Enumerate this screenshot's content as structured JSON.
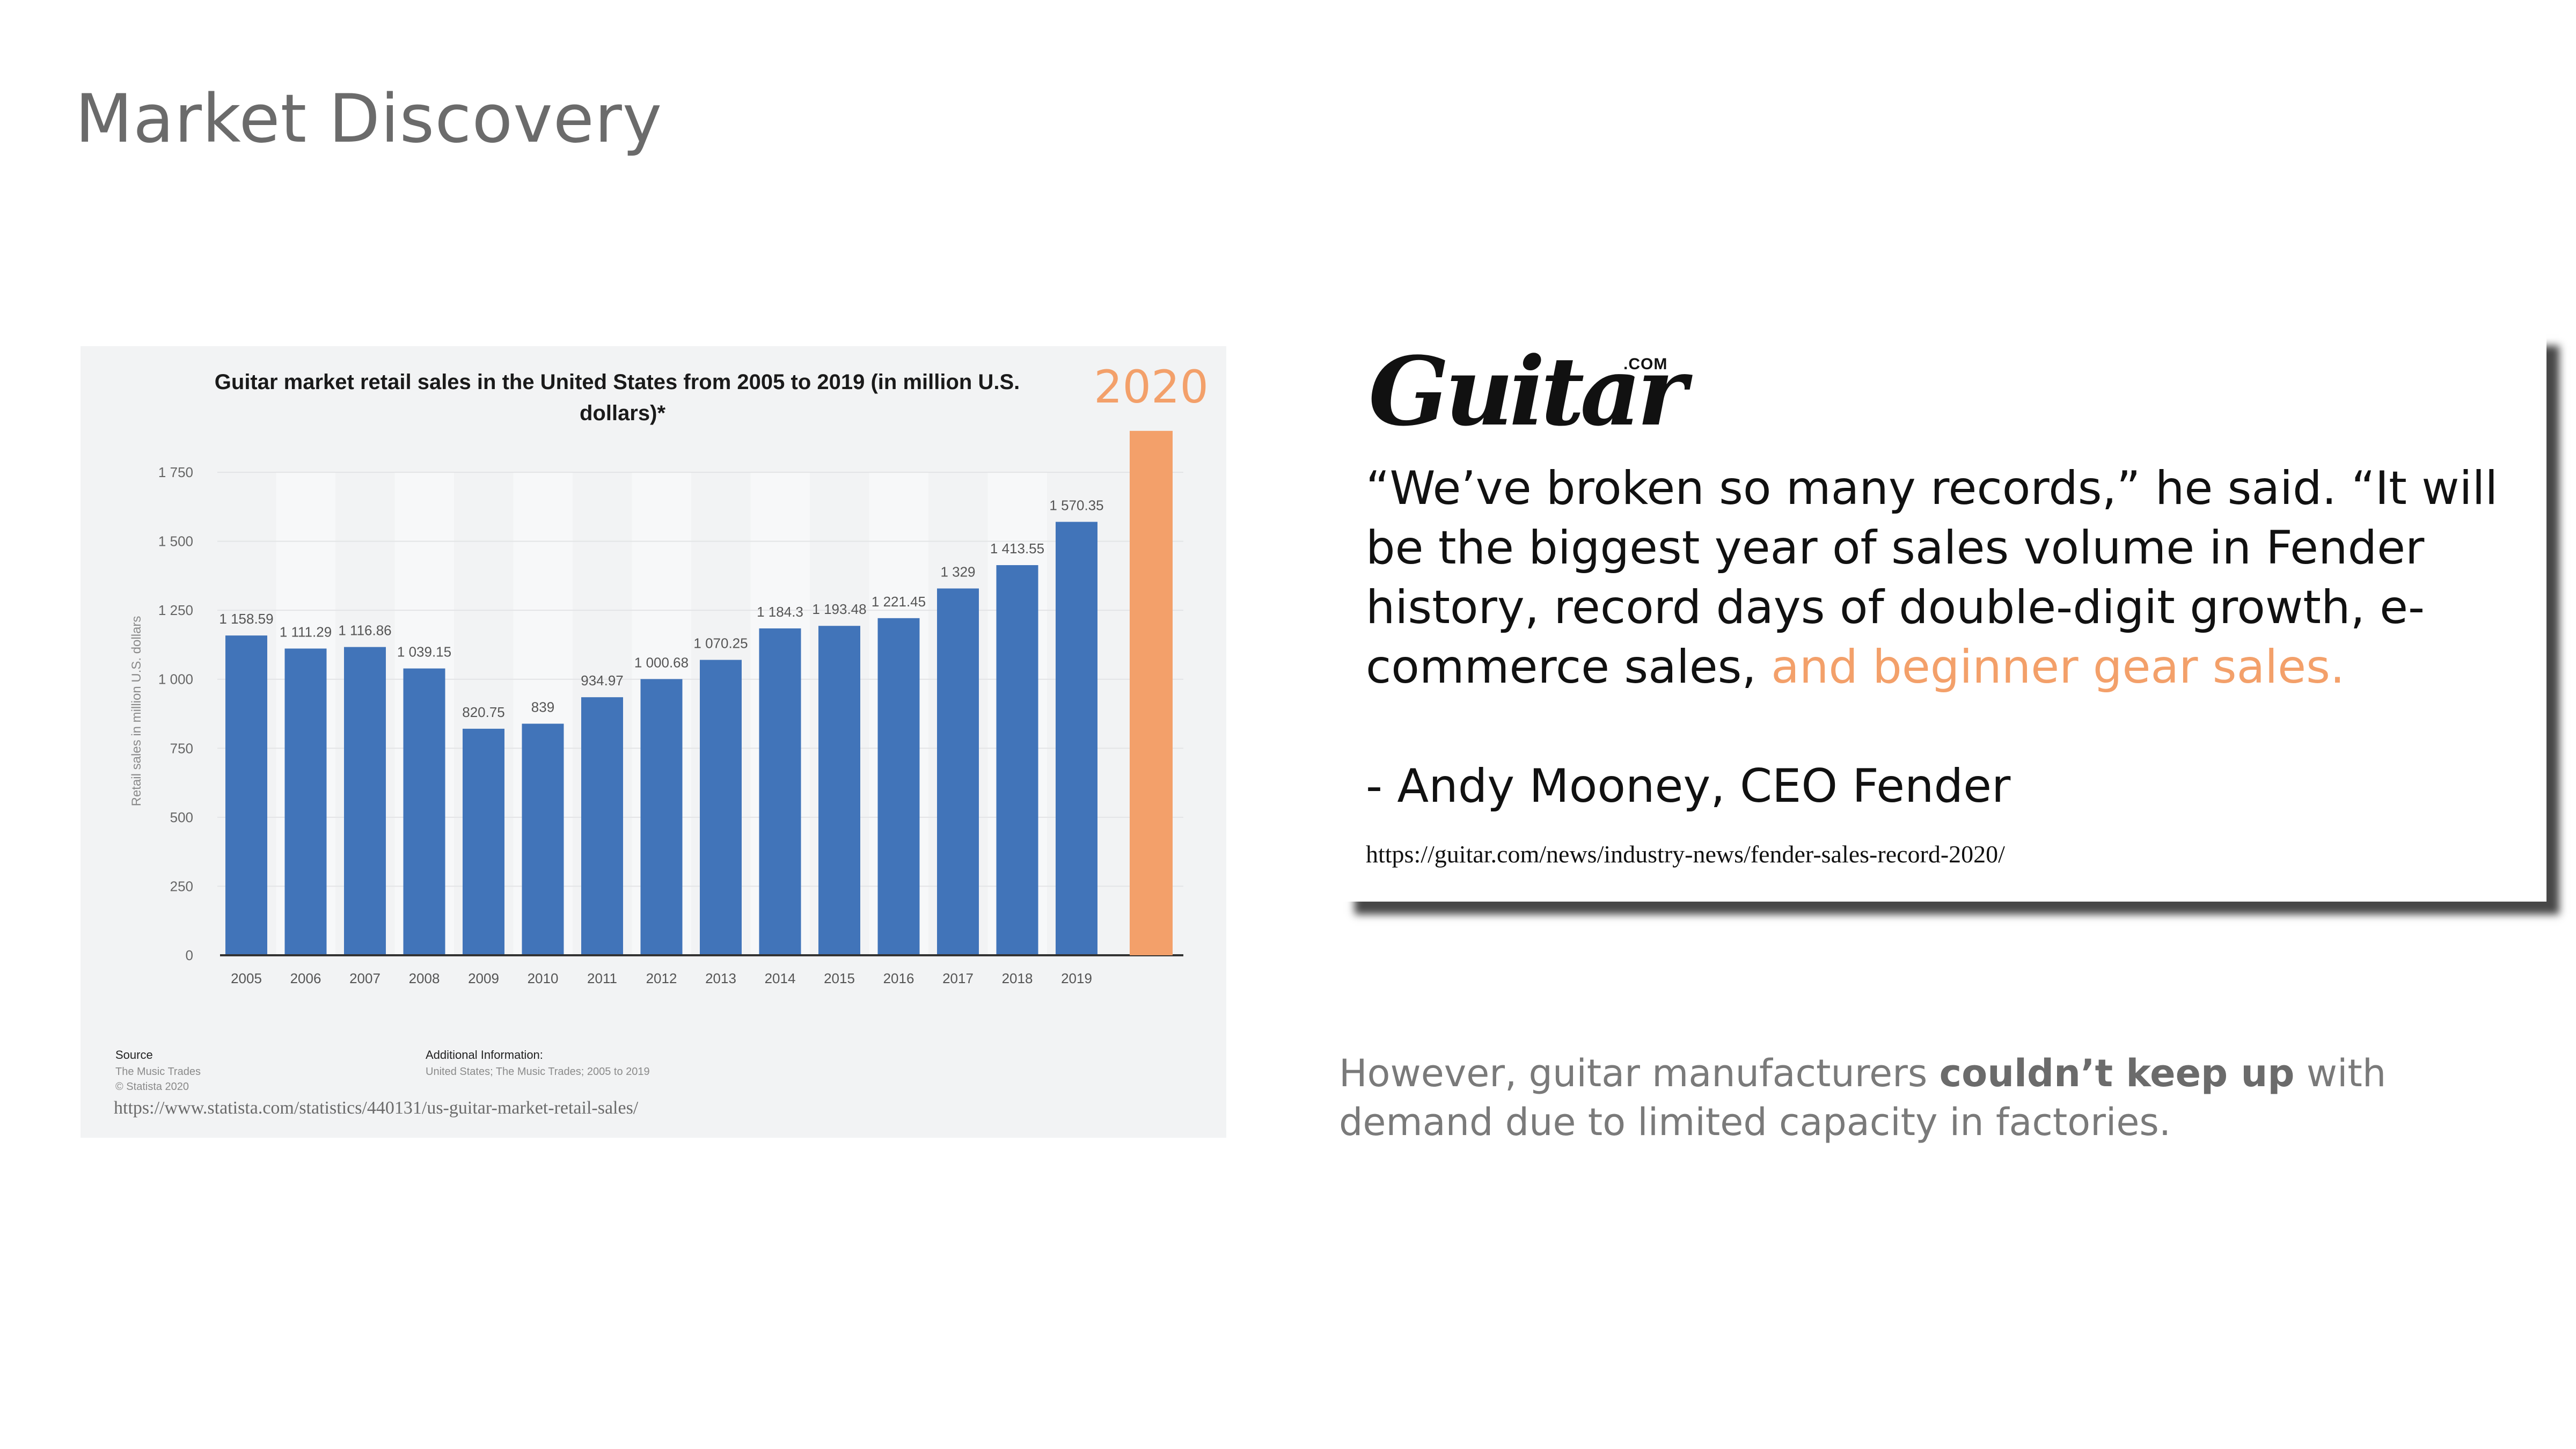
{
  "slide": {
    "title": "Market Discovery"
  },
  "chart_data": {
    "type": "bar",
    "title_line1": "Guitar market retail sales in the United States from 2005 to 2019 (in million U.S.",
    "title_line2": "dollars)*",
    "ylabel": "Retail sales in million U.S. dollars",
    "xlabel": "",
    "ylim": [
      0,
      1750
    ],
    "yticks": [
      0,
      250,
      500,
      750,
      1000,
      1250,
      1500,
      1750
    ],
    "ytick_labels": [
      "0",
      "250",
      "500",
      "750",
      "1 000",
      "1 250",
      "1 500",
      "1 750"
    ],
    "categories": [
      "2005",
      "2006",
      "2007",
      "2008",
      "2009",
      "2010",
      "2011",
      "2012",
      "2013",
      "2014",
      "2015",
      "2016",
      "2017",
      "2018",
      "2019"
    ],
    "values": [
      1158.59,
      1111.29,
      1116.86,
      1039.15,
      820.75,
      839,
      934.97,
      1000.68,
      1070.25,
      1184.3,
      1193.48,
      1221.45,
      1329,
      1413.55,
      1570.35
    ],
    "data_labels": [
      "1 158.59",
      "1 111.29",
      "1 116.86",
      "1 039.15",
      "820.75",
      "839",
      "934.97",
      "1 000.68",
      "1 070.25",
      "1 184.3",
      "1 193.48",
      "1 221.45",
      "1 329",
      "1 413.55",
      "1 570.35"
    ],
    "bar_color": "#4174b9",
    "grid": true,
    "extra_bar": {
      "label": "2020",
      "value": 1900,
      "color": "#f3a06a"
    },
    "source_heading": "Source",
    "source_lines": [
      "The Music Trades",
      "© Statista 2020"
    ],
    "additional_heading": "Additional Information:",
    "additional_line": "United States; The Music Trades; 2005 to 2019",
    "url": "https://www.statista.com/statistics/440131/us-guitar-market-retail-sales/"
  },
  "quote_card": {
    "logo": "Guitar",
    "logo_suffix": ".COM",
    "quote_main": "“We’ve broken so many records,” he said. “It will be the biggest year of sales volume in Fender history, record days of double-digit growth, e-commerce sales, ",
    "quote_accent": "and beginner gear sales.",
    "attribution": "- Andy Mooney, CEO Fender",
    "url": "https://guitar.com/news/industry-news/fender-sales-record-2020/"
  },
  "note": {
    "before": "However, guitar manufacturers ",
    "bold": "couldn’t keep up",
    "after": " with demand due to limited capacity in factories."
  },
  "colors": {
    "accent": "#f3a06a",
    "bar": "#4174b9"
  }
}
